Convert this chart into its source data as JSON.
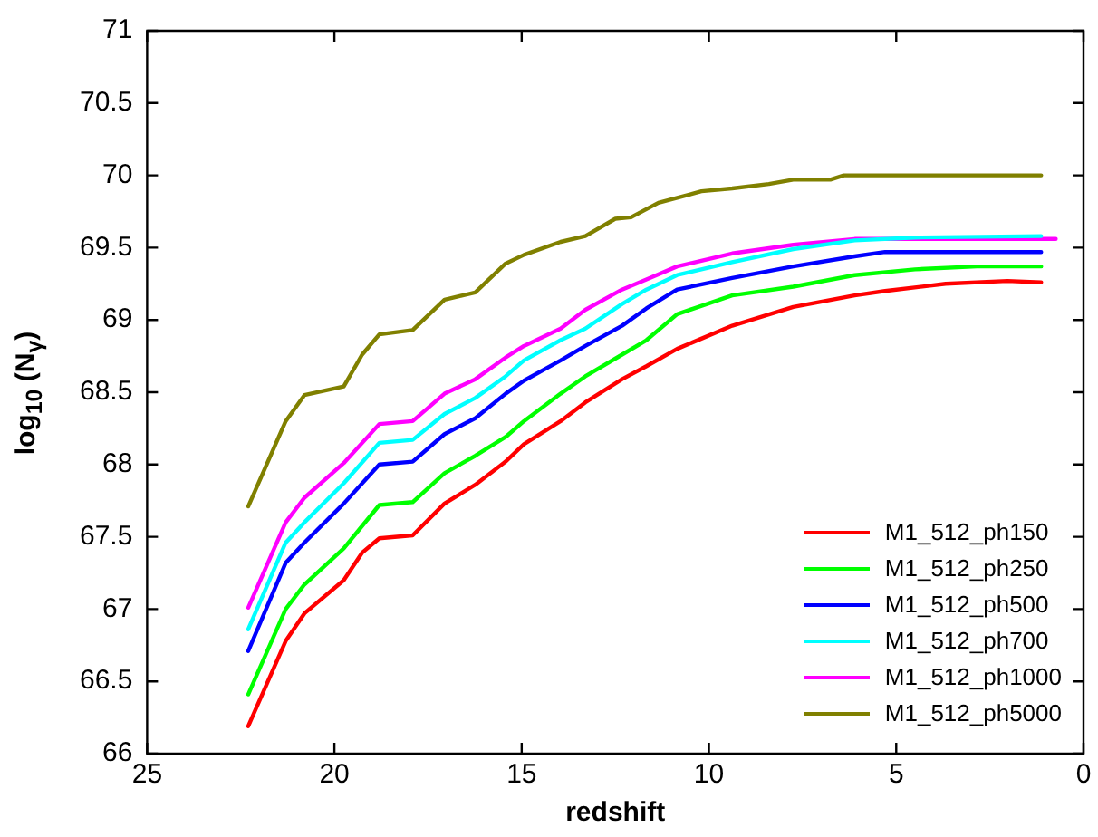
{
  "chart_data": {
    "type": "line",
    "xlabel": "redshift",
    "ylabel": "log$_{10}$ (N$_{γ}$)",
    "xlim": [
      25,
      0
    ],
    "ylim": [
      66,
      71
    ],
    "xticks": [
      25,
      20,
      15,
      10,
      5,
      0
    ],
    "yticks": [
      66,
      66.5,
      67,
      67.5,
      68,
      68.5,
      69,
      69.5,
      70,
      70.5,
      71
    ],
    "legend": "bottom right",
    "grid": false,
    "marker": "none",
    "line_style": "solid",
    "series": [
      {
        "name": "M1_512_ph150",
        "color": "#ff0000",
        "x": [
          22.3,
          21.3,
          20.8,
          19.75,
          19.26,
          18.8,
          17.91,
          17.06,
          16.24,
          15.43,
          14.94,
          13.96,
          13.3,
          12.32,
          11.67,
          10.85,
          9.38,
          7.75,
          6.11,
          5.3,
          3.68,
          2.03,
          1.13
        ],
        "values": [
          66.19,
          66.78,
          66.97,
          67.2,
          67.39,
          67.49,
          67.51,
          67.73,
          67.86,
          68.02,
          68.14,
          68.3,
          68.43,
          68.59,
          68.68,
          68.8,
          68.96,
          69.09,
          69.17,
          69.2,
          69.25,
          69.27,
          69.26
        ]
      },
      {
        "name": "M1_512_ph250",
        "color": "#00ff00",
        "x": [
          22.3,
          21.3,
          20.8,
          19.75,
          18.8,
          17.91,
          17.06,
          16.24,
          15.43,
          14.94,
          13.96,
          13.3,
          12.32,
          11.67,
          10.85,
          9.38,
          7.75,
          6.11,
          4.5,
          2.85,
          1.13
        ],
        "values": [
          66.41,
          67.0,
          67.17,
          67.42,
          67.72,
          67.74,
          67.94,
          68.06,
          68.19,
          68.3,
          68.49,
          68.61,
          68.76,
          68.86,
          69.04,
          69.17,
          69.23,
          69.31,
          69.35,
          69.37,
          69.37
        ]
      },
      {
        "name": "M1_512_ph500",
        "color": "#0000ff",
        "x": [
          22.3,
          21.3,
          20.8,
          19.75,
          18.8,
          17.91,
          17.06,
          16.24,
          15.43,
          14.94,
          13.96,
          13.3,
          12.32,
          11.67,
          10.85,
          9.38,
          7.75,
          6.11,
          5.3,
          1.13
        ],
        "values": [
          66.71,
          67.32,
          67.46,
          67.73,
          68.0,
          68.02,
          68.21,
          68.32,
          68.49,
          68.58,
          68.72,
          68.82,
          68.96,
          69.08,
          69.21,
          69.29,
          69.37,
          69.44,
          69.47,
          69.47
        ]
      },
      {
        "name": "M1_512_ph700",
        "color": "#00ffff",
        "x": [
          22.3,
          21.3,
          20.8,
          19.75,
          18.8,
          17.91,
          17.06,
          16.24,
          15.43,
          14.94,
          13.96,
          13.3,
          12.32,
          11.67,
          10.85,
          9.38,
          7.75,
          6.11,
          4.5,
          1.13
        ],
        "values": [
          66.86,
          67.46,
          67.6,
          67.87,
          68.15,
          68.17,
          68.35,
          68.46,
          68.61,
          68.72,
          68.86,
          68.94,
          69.11,
          69.21,
          69.31,
          69.4,
          69.49,
          69.55,
          69.57,
          69.58
        ]
      },
      {
        "name": "M1_512_ph1000",
        "color": "#ff00ff",
        "x": [
          22.3,
          21.3,
          20.8,
          19.75,
          18.8,
          17.91,
          17.06,
          16.24,
          15.43,
          14.94,
          13.96,
          13.3,
          12.32,
          11.67,
          10.85,
          9.38,
          7.75,
          6.11,
          0.74
        ],
        "values": [
          67.01,
          67.6,
          67.77,
          68.01,
          68.28,
          68.3,
          68.49,
          68.59,
          68.74,
          68.82,
          68.94,
          69.07,
          69.21,
          69.28,
          69.37,
          69.46,
          69.52,
          69.56,
          69.56
        ]
      },
      {
        "name": "M1_512_ph5000",
        "color": "#808000",
        "x": [
          22.3,
          21.3,
          20.8,
          19.75,
          19.26,
          18.8,
          17.91,
          17.06,
          16.24,
          15.43,
          14.94,
          13.96,
          13.3,
          12.5,
          12.08,
          11.35,
          10.2,
          9.38,
          8.4,
          7.75,
          6.76,
          6.4,
          1.13
        ],
        "values": [
          67.71,
          68.3,
          68.48,
          68.54,
          68.76,
          68.9,
          68.93,
          69.14,
          69.19,
          69.39,
          69.45,
          69.54,
          69.58,
          69.7,
          69.71,
          69.81,
          69.89,
          69.91,
          69.94,
          69.97,
          69.97,
          70.0,
          70.0
        ]
      }
    ]
  }
}
